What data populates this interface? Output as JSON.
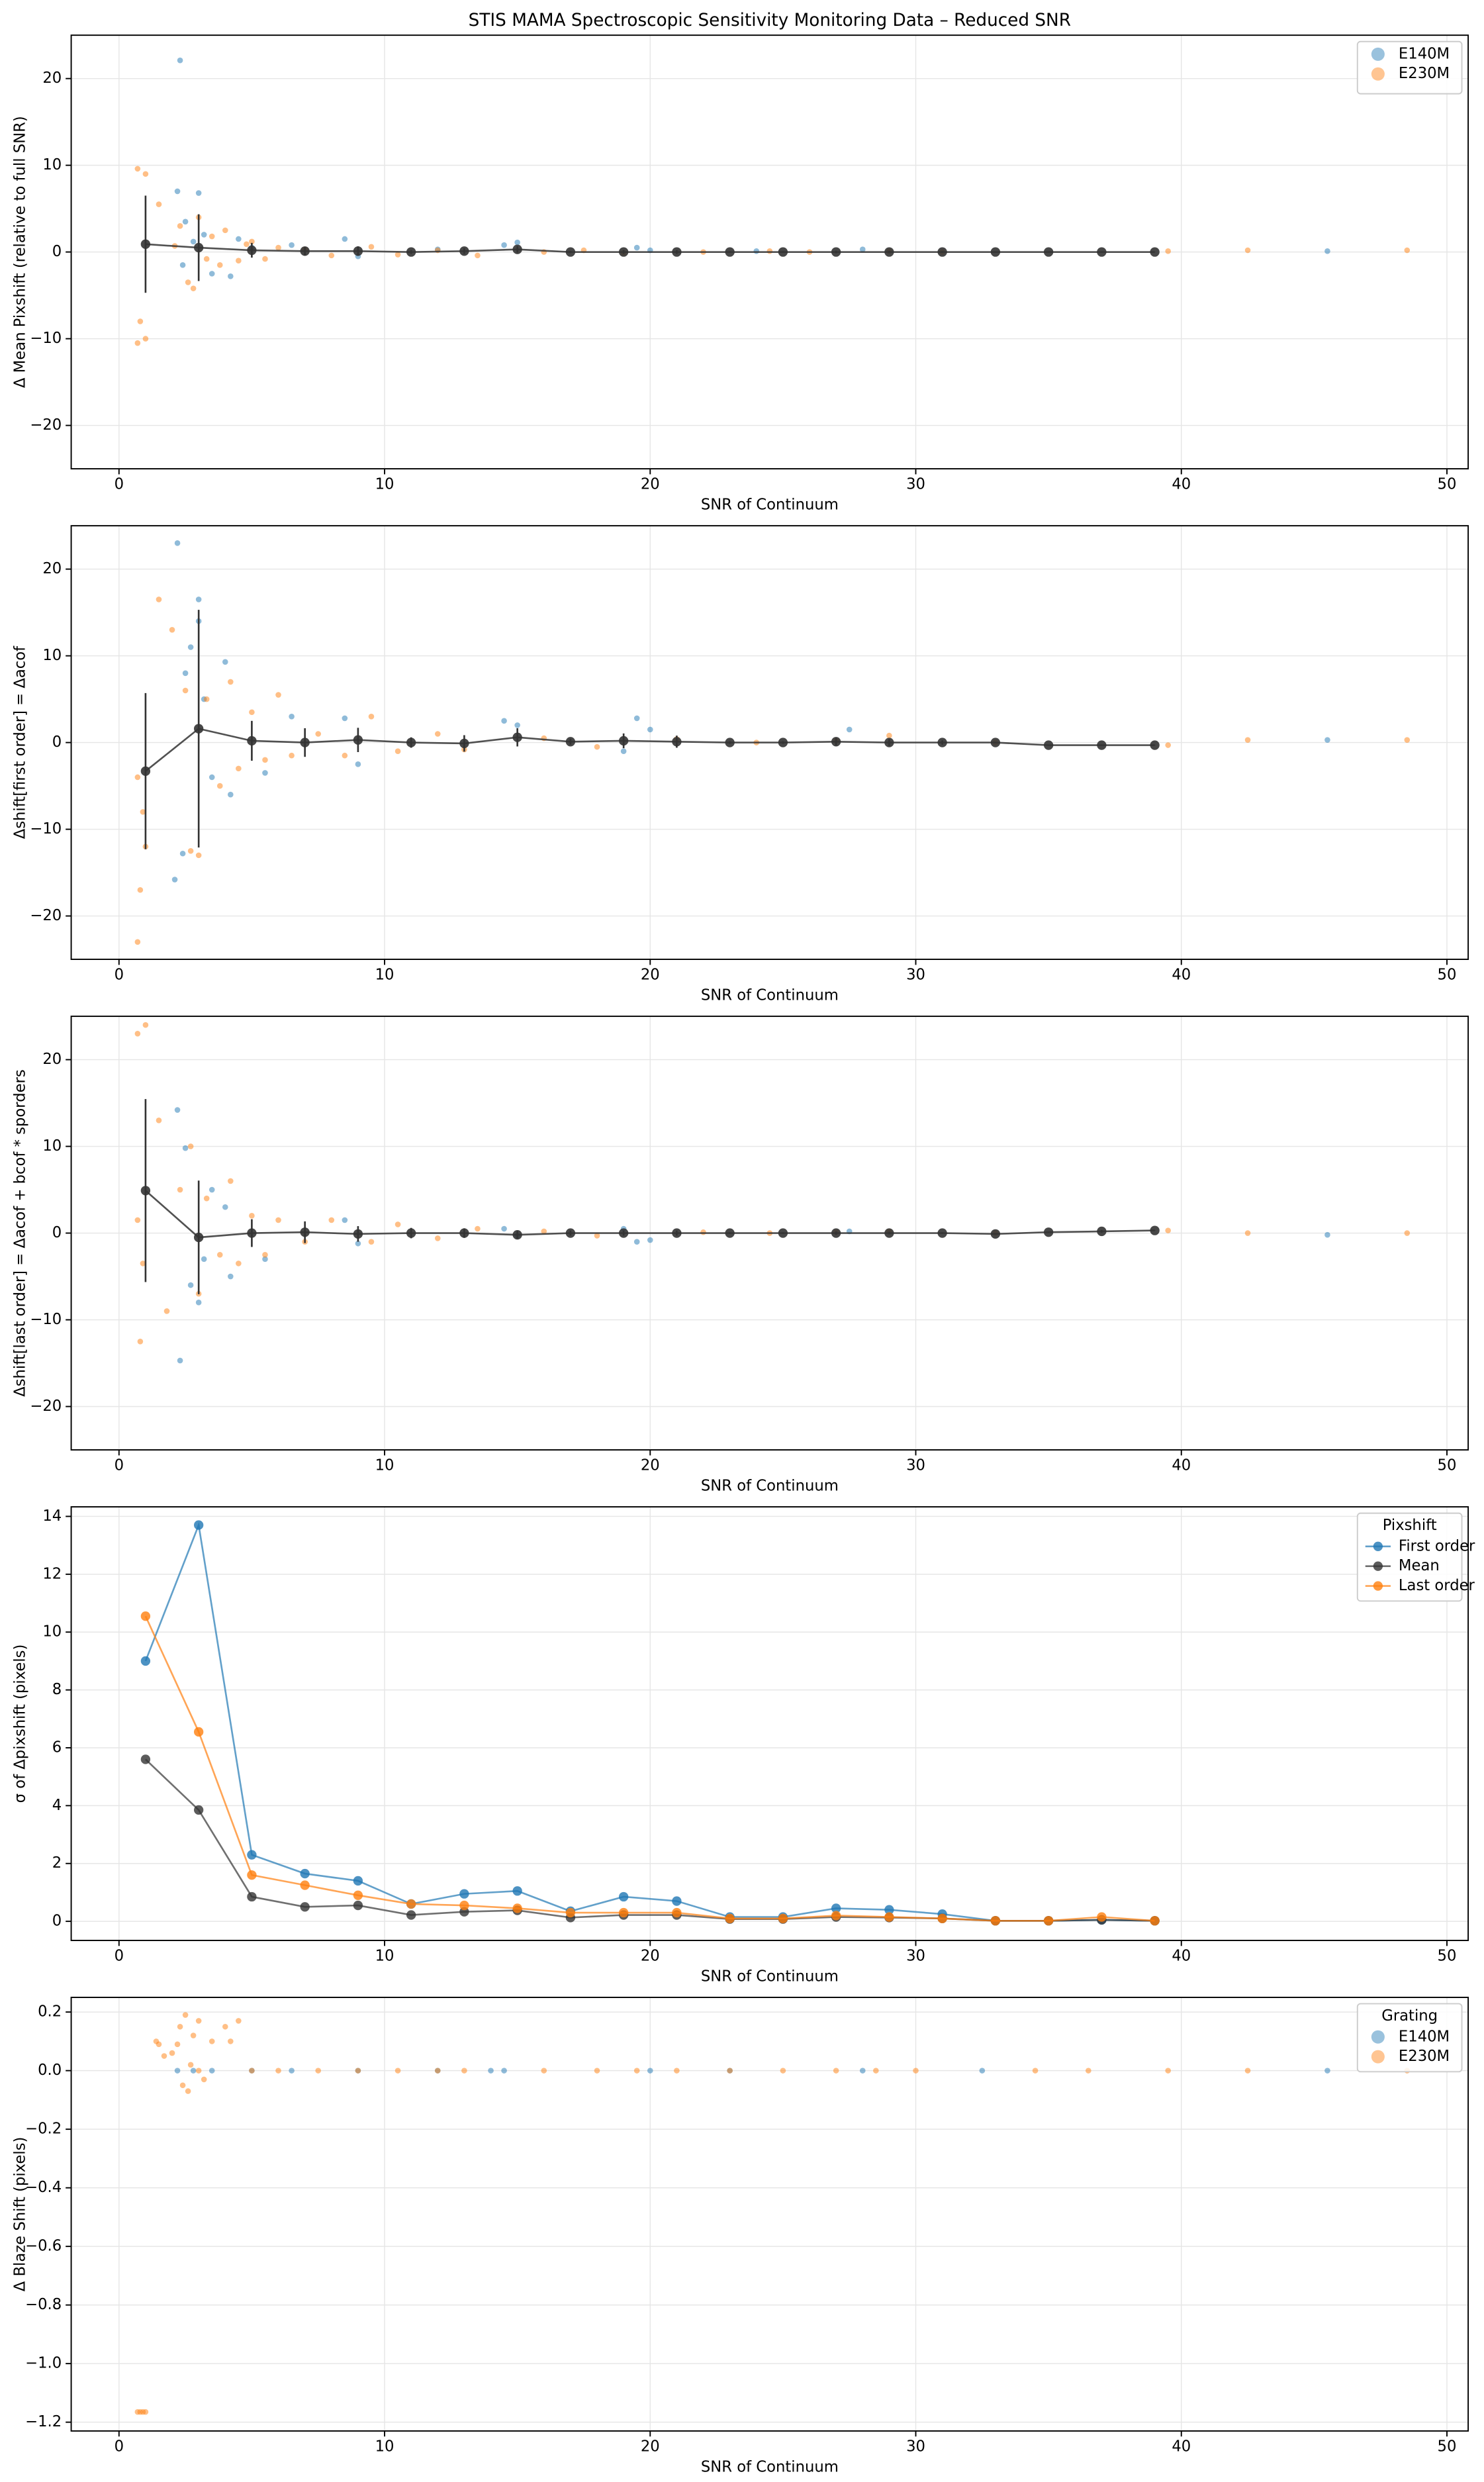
{
  "chart_data": [
    {
      "type": "scatter",
      "title": "STIS MAMA Spectroscopic Sensitivity Monitoring Data – Reduced SNR",
      "xlabel": "SNR of Continuum",
      "ylabel": "Δ Mean Pixshift (relative to full SNR)",
      "xlim": [
        -1.8,
        50.8
      ],
      "ylim": [
        -25,
        25
      ],
      "xticks": [
        0,
        10,
        20,
        30,
        40,
        50
      ],
      "yticks": [
        {
          "value": -20,
          "label": "−20"
        },
        {
          "value": -10,
          "label": "−10"
        },
        0,
        10,
        20
      ],
      "grid": true,
      "legend": "upper right",
      "series": [
        {
          "name": "E140M",
          "color": "#1f77b4",
          "x": [
            2.3,
            2.2,
            3,
            2.5,
            3.5,
            4.2,
            2.8,
            5,
            8.5,
            9,
            12,
            14.5,
            15,
            19.5,
            20,
            24,
            28,
            45.5,
            3.2,
            4.5,
            2.4,
            6.5
          ],
          "values": [
            22.1,
            7,
            6.8,
            3.5,
            -2.5,
            -2.8,
            1.2,
            0.5,
            1.5,
            -0.5,
            0.3,
            0.8,
            1.1,
            0.5,
            0.2,
            0.1,
            0.3,
            0.1,
            2,
            1.5,
            -1.5,
            0.8
          ]
        },
        {
          "name": "E230M",
          "color": "#ff7f0e",
          "x": [
            0.7,
            1,
            0.8,
            0.7,
            1,
            1.5,
            2.3,
            2.6,
            2.8,
            3,
            3.5,
            3.8,
            4,
            4.5,
            5,
            5.5,
            6,
            7,
            8,
            9.5,
            10.5,
            12,
            13.5,
            16,
            17.5,
            19,
            22,
            24.5,
            26,
            29,
            31,
            39.5,
            42.5,
            48.5,
            2.1,
            3.3,
            4.8
          ],
          "values": [
            9.6,
            9,
            -8,
            -10.5,
            -10,
            5.5,
            3,
            -3.5,
            -4.2,
            4,
            1.8,
            -1.5,
            2.5,
            -1,
            1.2,
            -0.8,
            0.5,
            0.3,
            -0.4,
            0.6,
            -0.3,
            0.2,
            -0.4,
            0,
            0.2,
            -0.1,
            0,
            0.1,
            0,
            0.1,
            0,
            0.1,
            0.2,
            0.2,
            0.7,
            -0.8,
            0.9
          ]
        },
        {
          "color": "#333333",
          "line": true,
          "x": [
            1,
            3,
            5,
            7,
            9,
            11,
            13,
            15,
            17,
            19,
            21,
            23,
            25,
            27,
            29,
            31,
            33,
            35,
            37,
            39
          ],
          "values": [
            0.9,
            0.5,
            0.2,
            0.1,
            0.1,
            0,
            0.1,
            0.3,
            0,
            0,
            0,
            0,
            0,
            0,
            0,
            0,
            0,
            0,
            0,
            0
          ],
          "errors": [
            5.6,
            3.85,
            0.85,
            0.5,
            0.55,
            0.22,
            0.33,
            0.38,
            0.13,
            0.22,
            0.22,
            0.08,
            0.08,
            0.15,
            0.13,
            0.1,
            0.02,
            0.02,
            0.05,
            0.02
          ]
        }
      ]
    },
    {
      "type": "scatter",
      "xlabel": "SNR of Continuum",
      "ylabel": "Δshift[first order] = Δacof",
      "xlim": [
        -1.8,
        50.8
      ],
      "ylim": [
        -25,
        25
      ],
      "xticks": [
        0,
        10,
        20,
        30,
        40,
        50
      ],
      "yticks": [
        {
          "value": -20,
          "label": "−20"
        },
        {
          "value": -10,
          "label": "−10"
        },
        0,
        10,
        20
      ],
      "grid": true,
      "series": [
        {
          "color": "#1f77b4",
          "x": [
            2.2,
            3,
            3,
            2.7,
            2.1,
            2.4,
            2.5,
            4,
            4.2,
            3.5,
            5.5,
            8.5,
            9,
            14.5,
            15,
            19.5,
            20,
            19,
            27.5,
            45.5,
            3.2,
            6.5
          ],
          "values": [
            23,
            16.5,
            14,
            11,
            -15.8,
            -12.8,
            8,
            9.3,
            -6,
            -4,
            -3.5,
            2.8,
            -2.5,
            2.5,
            2,
            2.8,
            1.5,
            -1,
            1.5,
            0.3,
            5,
            3
          ]
        },
        {
          "color": "#ff7f0e",
          "x": [
            0.7,
            0.8,
            1,
            0.9,
            0.7,
            1.5,
            2,
            2.7,
            3,
            2.5,
            3.3,
            3.8,
            4.2,
            4.5,
            5,
            5.5,
            6,
            6.5,
            7.5,
            8.5,
            9.5,
            10.5,
            12,
            13,
            16,
            18,
            21,
            24,
            27,
            29,
            33,
            39.5,
            42.5,
            48.5
          ],
          "values": [
            -23,
            -17,
            -12,
            -8,
            -4,
            16.5,
            13,
            -12.5,
            -13,
            6,
            5,
            -5,
            7,
            -3,
            3.5,
            -2,
            5.5,
            -1.5,
            1,
            -1.5,
            3,
            -1,
            1,
            -0.8,
            0.5,
            -0.5,
            0.4,
            0,
            0.2,
            0.8,
            0,
            -0.3,
            0.3,
            0.3
          ]
        },
        {
          "color": "#333333",
          "line": true,
          "x": [
            1,
            3,
            5,
            7,
            9,
            11,
            13,
            15,
            17,
            19,
            21,
            23,
            25,
            27,
            29,
            31,
            33,
            35,
            37,
            39
          ],
          "values": [
            -3.3,
            1.6,
            0.2,
            0,
            0.3,
            0,
            -0.1,
            0.6,
            0.1,
            0.2,
            0.1,
            0,
            0,
            0.1,
            0,
            0,
            0,
            -0.3,
            -0.3,
            -0.3
          ],
          "errors": [
            9,
            13.7,
            2.3,
            1.65,
            1.4,
            0.6,
            0.95,
            1.05,
            0.35,
            0.85,
            0.7,
            0.15,
            0.15,
            0.45,
            0.4,
            0.25,
            0.02,
            0.02,
            0.05,
            0.02
          ]
        }
      ]
    },
    {
      "type": "scatter",
      "xlabel": "SNR of Continuum",
      "ylabel": "Δshift[last order] = Δacof + bcof * sporders",
      "xlim": [
        -1.8,
        50.8
      ],
      "ylim": [
        -25,
        25
      ],
      "xticks": [
        0,
        10,
        20,
        30,
        40,
        50
      ],
      "yticks": [
        {
          "value": -20,
          "label": "−20"
        },
        {
          "value": -10,
          "label": "−10"
        },
        0,
        10,
        20
      ],
      "grid": true,
      "series": [
        {
          "color": "#1f77b4",
          "x": [
            2.2,
            2.3,
            2.5,
            3,
            2.7,
            3.5,
            4.2,
            4,
            5.5,
            8.5,
            9,
            14.5,
            15,
            19.5,
            20,
            19,
            27.5,
            45.5,
            3.2
          ],
          "values": [
            14.2,
            -14.7,
            9.8,
            -8,
            -6,
            5,
            -5,
            3,
            -3,
            1.5,
            -1.2,
            0.5,
            -0.3,
            -1,
            -0.8,
            0.5,
            0.2,
            -0.2,
            -3
          ]
        },
        {
          "color": "#ff7f0e",
          "x": [
            0.7,
            1,
            0.8,
            0.7,
            0.9,
            1.5,
            1.8,
            2.3,
            2.7,
            3,
            3.3,
            3.8,
            4.2,
            4.5,
            5,
            5.5,
            6,
            7,
            8,
            9.5,
            10.5,
            12,
            13.5,
            16,
            18,
            22,
            24.5,
            27,
            29,
            33,
            39.5,
            42.5,
            48.5
          ],
          "values": [
            23,
            24,
            -12.5,
            1.5,
            -3.5,
            13,
            -9,
            5,
            10,
            -7,
            4,
            -2.5,
            6,
            -3.5,
            2,
            -2.5,
            1.5,
            -1,
            1.5,
            -1,
            1,
            -0.6,
            0.5,
            0.2,
            -0.3,
            0.1,
            0,
            0.1,
            0.2,
            0,
            0.3,
            0,
            0
          ]
        },
        {
          "color": "#333333",
          "line": true,
          "x": [
            1,
            3,
            5,
            7,
            9,
            11,
            13,
            15,
            17,
            19,
            21,
            23,
            25,
            27,
            29,
            31,
            33,
            35,
            37,
            39
          ],
          "values": [
            4.9,
            -0.5,
            0,
            0.1,
            -0.1,
            0,
            0,
            -0.2,
            0,
            0,
            0,
            0,
            0,
            0,
            0,
            0,
            -0.1,
            0.1,
            0.2,
            0.3
          ],
          "errors": [
            10.55,
            6.55,
            1.6,
            1.25,
            0.9,
            0.6,
            0.55,
            0.45,
            0.3,
            0.3,
            0.3,
            0.1,
            0.1,
            0.2,
            0.15,
            0.1,
            0.02,
            0.02,
            0.15,
            0.02
          ]
        }
      ]
    },
    {
      "type": "line",
      "xlabel": "SNR of Continuum",
      "ylabel": "σ of Δpixshift (pixels)",
      "xlim": [
        -1.8,
        50.8
      ],
      "ylim": [
        -0.66,
        14.33
      ],
      "xticks": [
        0,
        10,
        20,
        30,
        40,
        50
      ],
      "yticks": [
        0,
        2,
        4,
        6,
        8,
        10,
        12,
        14
      ],
      "grid": true,
      "legend": "upper right",
      "legend_title": "Pixshift",
      "series": [
        {
          "name": "First order",
          "color": "#1f77b4",
          "x": [
            1,
            3,
            5,
            7,
            9,
            11,
            13,
            15,
            17,
            19,
            21,
            23,
            25,
            27,
            29,
            31,
            33,
            35,
            37,
            39
          ],
          "values": [
            9,
            13.7,
            2.3,
            1.65,
            1.4,
            0.6,
            0.95,
            1.05,
            0.35,
            0.85,
            0.7,
            0.15,
            0.15,
            0.45,
            0.4,
            0.25,
            0.02,
            0.02,
            0.05,
            0.02
          ]
        },
        {
          "name": "Mean",
          "color": "#333333",
          "x": [
            1,
            3,
            5,
            7,
            9,
            11,
            13,
            15,
            17,
            19,
            21,
            23,
            25,
            27,
            29,
            31,
            33,
            35,
            37,
            39
          ],
          "values": [
            5.6,
            3.85,
            0.85,
            0.5,
            0.55,
            0.22,
            0.33,
            0.38,
            0.13,
            0.22,
            0.22,
            0.08,
            0.08,
            0.15,
            0.13,
            0.1,
            0.02,
            0.02,
            0.05,
            0.02
          ]
        },
        {
          "name": "Last order",
          "color": "#ff7f0e",
          "x": [
            1,
            3,
            5,
            7,
            9,
            11,
            13,
            15,
            17,
            19,
            21,
            23,
            25,
            27,
            29,
            31,
            33,
            35,
            37,
            39
          ],
          "values": [
            10.55,
            6.55,
            1.6,
            1.25,
            0.9,
            0.6,
            0.55,
            0.45,
            0.3,
            0.3,
            0.3,
            0.1,
            0.1,
            0.2,
            0.15,
            0.1,
            0.02,
            0.02,
            0.15,
            0.02
          ]
        }
      ]
    },
    {
      "type": "scatter",
      "xlabel": "SNR of Continuum",
      "ylabel": "Δ Blaze Shift (pixels)",
      "xlim": [
        -1.8,
        50.8
      ],
      "ylim": [
        -1.23,
        0.25
      ],
      "xticks": [
        0,
        10,
        20,
        30,
        40,
        50
      ],
      "yticks": [
        {
          "value": -1.2,
          "label": "−1.2"
        },
        {
          "value": -1,
          "label": "−1.0"
        },
        {
          "value": -0.8,
          "label": "−0.8"
        },
        {
          "value": -0.6,
          "label": "−0.6"
        },
        {
          "value": -0.4,
          "label": "−0.4"
        },
        {
          "value": -0.2,
          "label": "−0.2"
        },
        {
          "value": 0,
          "label": "0.0"
        },
        0.2
      ],
      "grid": true,
      "legend": "upper right",
      "legend_title": "Grating",
      "series": [
        {
          "name": "E140M",
          "color": "#1f77b4",
          "x": [
            2.2,
            2.8,
            3.5,
            5,
            6.5,
            9,
            12,
            14,
            14.5,
            20,
            23,
            28,
            32.5,
            45.5
          ],
          "values": [
            0,
            0,
            0,
            0,
            0,
            0,
            0,
            0,
            0,
            0,
            0,
            0,
            0,
            0
          ]
        },
        {
          "name": "E230M",
          "color": "#ff7f0e",
          "x": [
            0.7,
            0.8,
            0.9,
            1,
            1.5,
            1.7,
            1.4,
            2,
            2.3,
            2.5,
            2.6,
            2.8,
            3,
            2.7,
            3.5,
            4,
            4.5,
            4.2,
            2.4,
            3,
            5,
            6,
            7.5,
            9,
            10.5,
            12,
            13,
            16,
            18,
            19.5,
            21,
            23,
            25,
            27,
            28.5,
            30,
            34.5,
            36.5,
            39.5,
            42.5,
            48.5,
            2.2,
            3.2
          ],
          "values": [
            -1.165,
            -1.165,
            -1.165,
            -1.165,
            0.09,
            0.05,
            0.1,
            0.06,
            0.15,
            0.19,
            -0.07,
            0.12,
            0.17,
            0.02,
            0.1,
            0.15,
            0.17,
            0.1,
            -0.05,
            0,
            0,
            0,
            0,
            0,
            0,
            0,
            0,
            0,
            0,
            0,
            0,
            0,
            0,
            0,
            0,
            0,
            0,
            0,
            0,
            0,
            0,
            0.09,
            -0.03
          ]
        }
      ]
    }
  ]
}
